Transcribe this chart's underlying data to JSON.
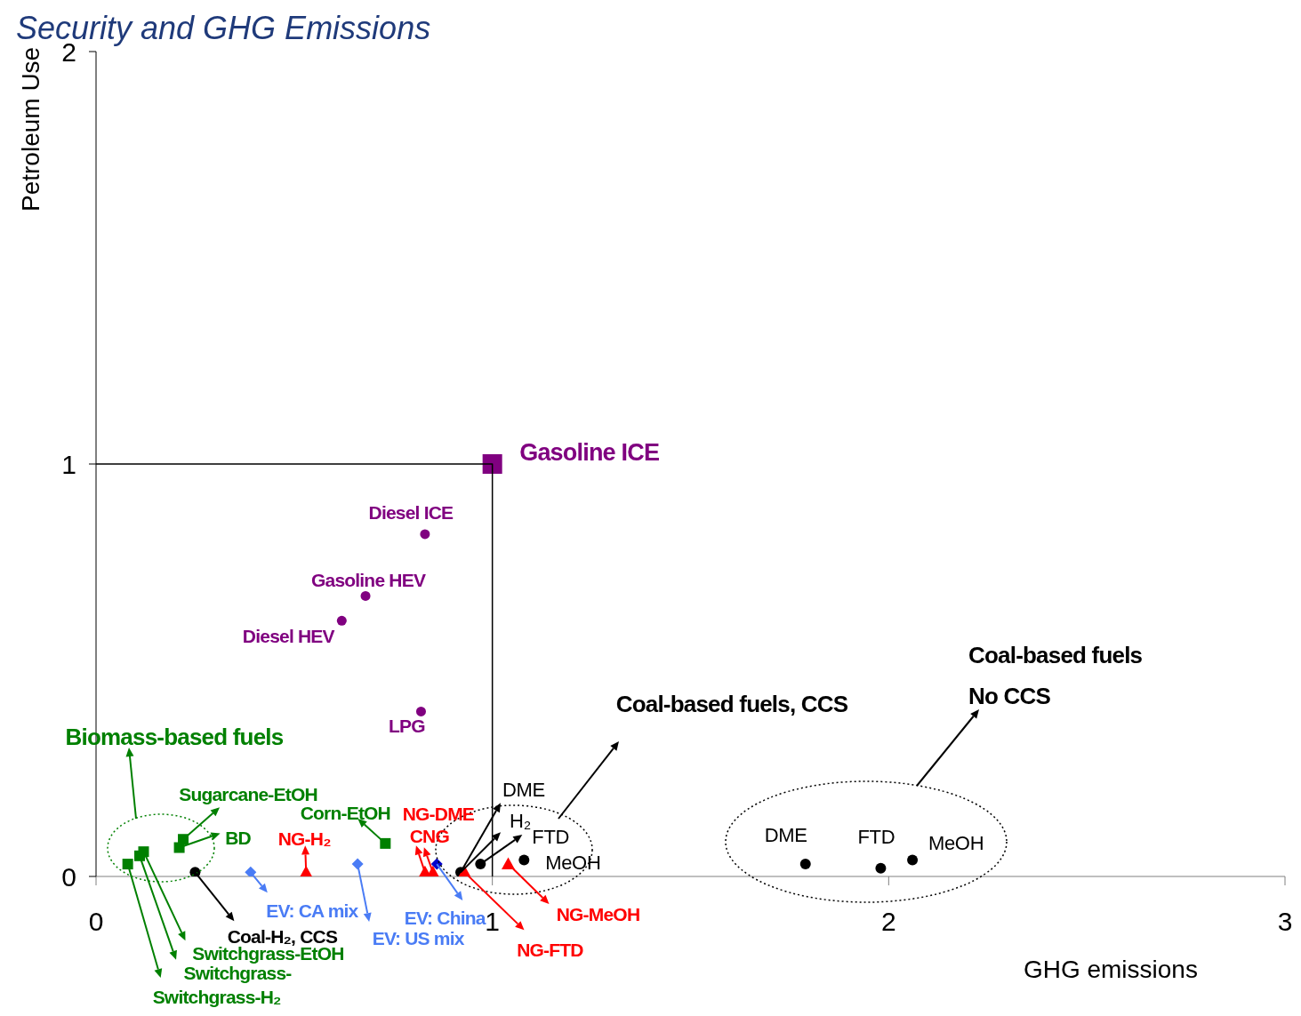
{
  "chart_data": {
    "type": "scatter",
    "title": "Security and GHG Emissions",
    "xlabel": "GHG emissions",
    "ylabel": "Petroleum Use",
    "xlim": [
      0,
      3
    ],
    "ylim": [
      0,
      2
    ],
    "xticks": [
      0,
      1,
      2,
      3
    ],
    "yticks": [
      0,
      1,
      2
    ],
    "series": [
      {
        "marker": "square",
        "color": "#800080",
        "x": [
          1.0
        ],
        "values": [
          1.0
        ]
      },
      {
        "marker": "circle",
        "color": "#800080",
        "x": [
          0.83,
          0.68,
          0.62,
          0.82
        ],
        "values": [
          0.83,
          0.68,
          0.62,
          0.4
        ]
      },
      {
        "marker": "square",
        "color": "#008000",
        "x": [
          0.08,
          0.11,
          0.12,
          0.21,
          0.22,
          0.73
        ],
        "values": [
          0.03,
          0.05,
          0.06,
          0.07,
          0.09,
          0.08
        ]
      },
      {
        "marker": "circle",
        "color": "#000000",
        "x": [
          0.25,
          0.92,
          0.97,
          1.08,
          1.79,
          1.98,
          2.06
        ],
        "values": [
          0.01,
          0.01,
          0.03,
          0.04,
          0.03,
          0.02,
          0.04
        ]
      },
      {
        "marker": "diamond",
        "color": "#4a7cf5",
        "colors": [
          "#4a7cf5",
          "#4a7cf5",
          "#0000cc"
        ],
        "x": [
          0.39,
          0.66,
          0.86
        ],
        "values": [
          0.01,
          0.03,
          0.03
        ]
      },
      {
        "marker": "triangle",
        "color": "#ff0000",
        "x": [
          0.53,
          0.83,
          0.85,
          0.93,
          1.04
        ],
        "values": [
          0.01,
          0.01,
          0.01,
          0.01,
          0.03
        ]
      },
      {
        "type": "line",
        "marker": "none",
        "color": "#000000",
        "x": [
          0,
          1,
          1
        ],
        "values": [
          1,
          1,
          0
        ]
      }
    ],
    "annotations": [
      {
        "text": "Gasoline ICE",
        "x": 1.0,
        "y": 1.0
      },
      {
        "text": "Diesel ICE",
        "x": 0.83,
        "y": 0.83
      },
      {
        "text": "Gasoline HEV",
        "x": 0.68,
        "y": 0.68
      },
      {
        "text": "Diesel HEV",
        "x": 0.62,
        "y": 0.62
      },
      {
        "text": "LPG",
        "x": 0.82,
        "y": 0.4
      },
      {
        "text": "Sugarcane-EtOH",
        "x": 0.22,
        "y": 0.09
      },
      {
        "text": "BD",
        "x": 0.21,
        "y": 0.07
      },
      {
        "text": "Corn-EtOH",
        "x": 0.73,
        "y": 0.08
      },
      {
        "text": "NG-H₂",
        "x": 0.53,
        "y": 0.01
      },
      {
        "text": "NG-DME",
        "x": 0.83,
        "y": 0.01
      },
      {
        "text": "CNG",
        "x": 0.85,
        "y": 0.01
      },
      {
        "text": "EV: CA mix",
        "x": 0.39,
        "y": 0.01
      },
      {
        "text": "EV: US mix",
        "x": 0.66,
        "y": 0.03
      },
      {
        "text": "EV: China",
        "x": 0.86,
        "y": 0.03
      },
      {
        "text": "Coal-H₂, CCS",
        "x": 0.25,
        "y": 0.01
      },
      {
        "text": "DME",
        "x": 0.92,
        "y": 0.01
      },
      {
        "text": "H₂",
        "x": 0.92,
        "y": 0.01
      },
      {
        "text": "FTD",
        "x": 0.97,
        "y": 0.03
      },
      {
        "text": "MeOH",
        "x": 1.08,
        "y": 0.04
      },
      {
        "text": "NG-FTD",
        "x": 0.93,
        "y": 0.01
      },
      {
        "text": "NG-MeOH",
        "x": 1.04,
        "y": 0.03
      },
      {
        "text": "Switchgrass-EtOH",
        "x": 0.12,
        "y": 0.06
      },
      {
        "text": "Switchgrass-",
        "x": 0.11,
        "y": 0.05
      },
      {
        "text": "Switchgrass-H₂",
        "x": 0.08,
        "y": 0.03
      },
      {
        "text": "DME",
        "x": 1.79,
        "y": 0.03
      },
      {
        "text": "FTD",
        "x": 1.98,
        "y": 0.02
      },
      {
        "text": "MeOH",
        "x": 2.06,
        "y": 0.04
      },
      "Biomass-based fuels",
      "Coal-based fuels, CCS",
      "Coal-based fuels",
      "No CCS"
    ]
  }
}
